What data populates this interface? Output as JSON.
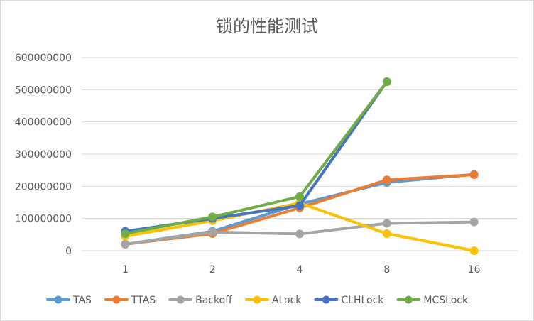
{
  "chart_data": {
    "type": "line",
    "title": "锁的性能测试",
    "xlabel": "",
    "ylabel": "",
    "categories": [
      "1",
      "2",
      "4",
      "8",
      "16"
    ],
    "ylim": [
      0,
      600000000
    ],
    "yticks": [
      0,
      100000000,
      200000000,
      300000000,
      400000000,
      500000000,
      600000000
    ],
    "ytick_labels": [
      "0",
      "100000000",
      "200000000",
      "300000000",
      "400000000",
      "500000000",
      "600000000"
    ],
    "grid": true,
    "legend": "bottom",
    "series": [
      {
        "name": "TAS",
        "color": "#5b9bd5",
        "values": [
          20000000,
          60000000,
          145000000,
          212000000,
          237000000
        ]
      },
      {
        "name": "TTAS",
        "color": "#ed7d31",
        "values": [
          20000000,
          53000000,
          133000000,
          220000000,
          236000000
        ]
      },
      {
        "name": "Backoff",
        "color": "#a5a5a5",
        "values": [
          20000000,
          58000000,
          52000000,
          85000000,
          89000000
        ]
      },
      {
        "name": "ALock",
        "color": "#ffc000",
        "values": [
          45000000,
          93000000,
          148000000,
          53000000,
          0
        ]
      },
      {
        "name": "CLHLock",
        "color": "#4472c4",
        "values": [
          60000000,
          100000000,
          140000000,
          525000000,
          null
        ]
      },
      {
        "name": "MCSLock",
        "color": "#70ad47",
        "values": [
          53000000,
          105000000,
          168000000,
          525000000,
          null
        ]
      }
    ]
  }
}
